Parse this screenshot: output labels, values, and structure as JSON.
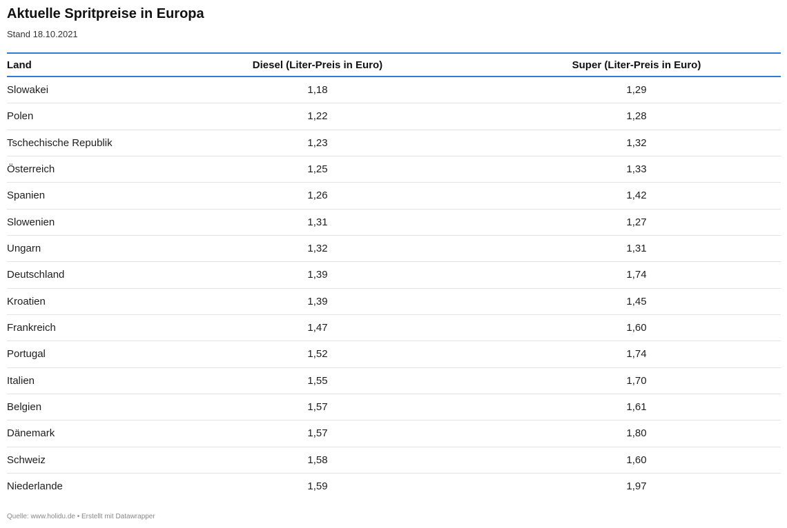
{
  "title": "Aktuelle Spritpreise in Europa",
  "subtitle": "Stand 18.10.2021",
  "footer": "Quelle: www.holidu.de • Erstellt mit Datawrapper",
  "colors": {
    "header_rule": "#2b7bd6",
    "row_divider": "#e3e3e3"
  },
  "chart_data": {
    "type": "table",
    "columns": [
      "Land",
      "Diesel (Liter-Preis in Euro)",
      "Super (Liter-Preis in Euro)"
    ],
    "rows": [
      [
        "Slowakei",
        "1,18",
        "1,29"
      ],
      [
        "Polen",
        "1,22",
        "1,28"
      ],
      [
        "Tschechische Republik",
        "1,23",
        "1,32"
      ],
      [
        "Österreich",
        "1,25",
        "1,33"
      ],
      [
        "Spanien",
        "1,26",
        "1,42"
      ],
      [
        "Slowenien",
        "1,31",
        "1,27"
      ],
      [
        "Ungarn",
        "1,32",
        "1,31"
      ],
      [
        "Deutschland",
        "1,39",
        "1,74"
      ],
      [
        "Kroatien",
        "1,39",
        "1,45"
      ],
      [
        "Frankreich",
        "1,47",
        "1,60"
      ],
      [
        "Portugal",
        "1,52",
        "1,74"
      ],
      [
        "Italien",
        "1,55",
        "1,70"
      ],
      [
        "Belgien",
        "1,57",
        "1,61"
      ],
      [
        "Dänemark",
        "1,57",
        "1,80"
      ],
      [
        "Schweiz",
        "1,58",
        "1,60"
      ],
      [
        "Niederlande",
        "1,59",
        "1,97"
      ]
    ]
  }
}
